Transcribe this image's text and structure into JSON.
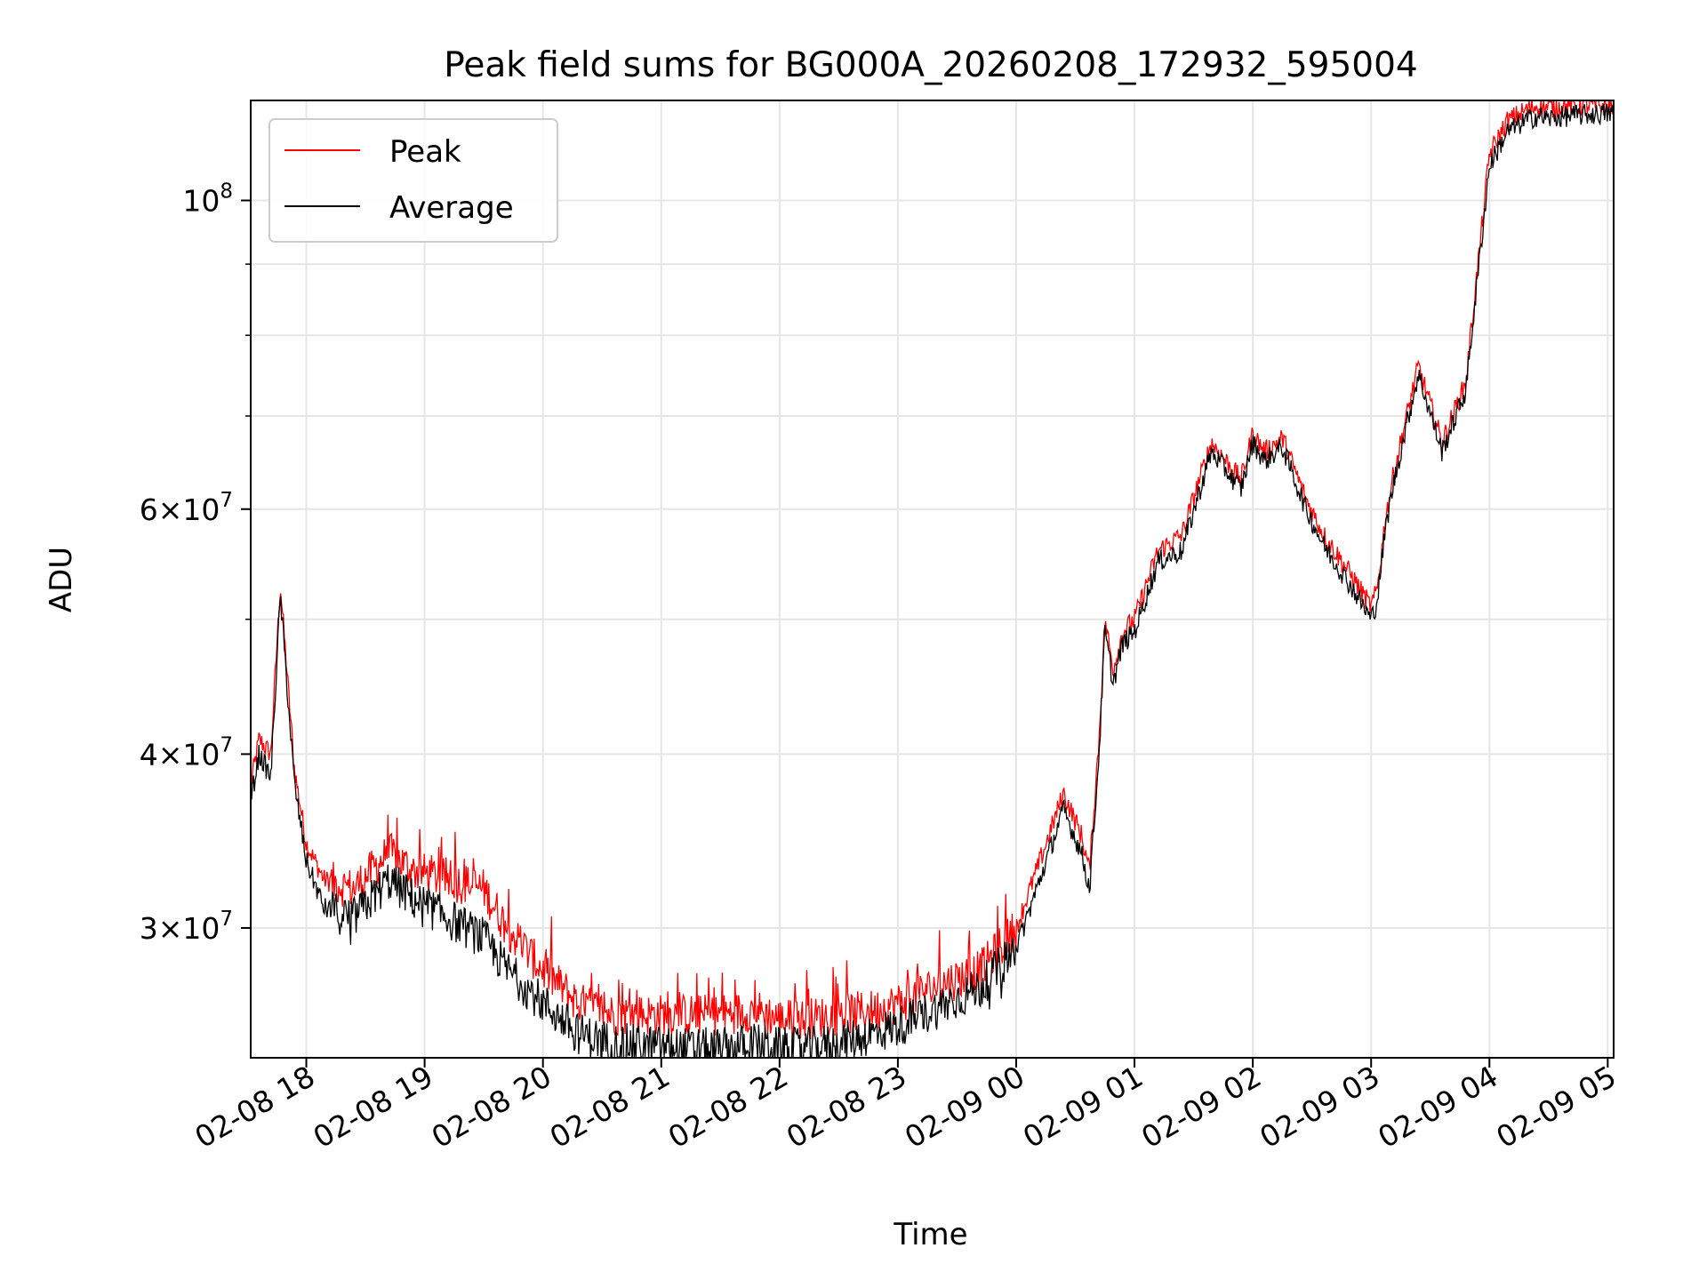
{
  "chart_data": {
    "type": "line",
    "title": "Peak field sums for BG000A_20260208_172932_595004",
    "xlabel": "Time",
    "ylabel": "ADU",
    "yscale": "log",
    "grid": true,
    "legend_position": "top-left",
    "xlim_hours_from_02-08_17": [
      0.53,
      12.05
    ],
    "ylim": [
      24200000,
      118000000
    ],
    "x_ticks": [
      {
        "hour": 1,
        "label": "02-08 18"
      },
      {
        "hour": 2,
        "label": "02-08 19"
      },
      {
        "hour": 3,
        "label": "02-08 20"
      },
      {
        "hour": 4,
        "label": "02-08 21"
      },
      {
        "hour": 5,
        "label": "02-08 22"
      },
      {
        "hour": 6,
        "label": "02-08 23"
      },
      {
        "hour": 7,
        "label": "02-09 00"
      },
      {
        "hour": 8,
        "label": "02-09 01"
      },
      {
        "hour": 9,
        "label": "02-09 02"
      },
      {
        "hour": 10,
        "label": "02-09 03"
      },
      {
        "hour": 11,
        "label": "02-09 04"
      },
      {
        "hour": 12,
        "label": "02-09 05"
      }
    ],
    "y_major_ticks": [
      {
        "value": 30000000,
        "mant": "3",
        "exp": "7"
      },
      {
        "value": 40000000,
        "mant": "4",
        "exp": "7"
      },
      {
        "value": 60000000,
        "mant": "6",
        "exp": "7"
      },
      {
        "value": 100000000,
        "mant": "",
        "exp": "8"
      }
    ],
    "y_minor_ticks": [
      50000000,
      70000000,
      80000000,
      90000000
    ],
    "series": [
      {
        "name": "Peak",
        "color": "#ff0000",
        "x_hours": [
          0.53,
          0.6,
          0.7,
          0.78,
          0.9,
          1.0,
          1.15,
          1.4,
          1.7,
          1.9,
          2.2,
          2.5,
          2.7,
          3.0,
          3.3,
          3.6,
          3.9,
          4.2,
          4.5,
          4.8,
          5.0,
          5.2,
          5.5,
          5.8,
          6.0,
          6.3,
          6.7,
          7.0,
          7.2,
          7.4,
          7.55,
          7.62,
          7.7,
          7.75,
          7.82,
          7.9,
          8.0,
          8.2,
          8.4,
          8.65,
          8.9,
          9.0,
          9.1,
          9.25,
          9.45,
          9.6,
          9.85,
          10.0,
          10.05,
          10.12,
          10.18,
          10.25,
          10.3,
          10.4,
          10.6,
          10.8,
          11.0,
          11.15,
          11.3,
          11.4,
          11.5,
          11.65,
          12.0,
          12.05
        ],
        "values": [
          38000000,
          41000000,
          40000000,
          53000000,
          39000000,
          34500000,
          32500000,
          32000000,
          34000000,
          33000000,
          32500000,
          32000000,
          30000000,
          28000000,
          26500000,
          26000000,
          26000000,
          26000000,
          26000000,
          26200000,
          25800000,
          25800000,
          26000000,
          26200000,
          26500000,
          27200000,
          28000000,
          30000000,
          33500000,
          37500000,
          35000000,
          33000000,
          41000000,
          50000000,
          46000000,
          49000000,
          50000000,
          56000000,
          57500000,
          67000000,
          63000000,
          68000000,
          66000000,
          67500000,
          61000000,
          57500000,
          53500000,
          51000000,
          52500000,
          59000000,
          63000000,
          67000000,
          70000000,
          76000000,
          67000000,
          74000000,
          108000000,
          114000000,
          116000000,
          117000000,
          116500000,
          117000000,
          117000000,
          117000000
        ]
      },
      {
        "name": "Average",
        "color": "#000000",
        "x_hours": [
          0.53,
          0.6,
          0.7,
          0.78,
          0.9,
          1.0,
          1.15,
          1.4,
          1.7,
          1.9,
          2.2,
          2.5,
          2.7,
          3.0,
          3.3,
          3.6,
          3.9,
          4.2,
          4.5,
          4.8,
          5.0,
          5.2,
          5.5,
          5.8,
          6.0,
          6.3,
          6.7,
          7.0,
          7.2,
          7.4,
          7.55,
          7.62,
          7.7,
          7.75,
          7.82,
          7.9,
          8.0,
          8.2,
          8.4,
          8.65,
          8.9,
          9.0,
          9.1,
          9.25,
          9.45,
          9.6,
          9.85,
          10.0,
          10.05,
          10.12,
          10.18,
          10.25,
          10.3,
          10.4,
          10.6,
          10.8,
          11.0,
          11.15,
          11.3,
          11.4,
          11.5,
          11.65,
          12.0,
          12.05
        ],
        "values": [
          37000000,
          40000000,
          38500000,
          52000000,
          38000000,
          33500000,
          31000000,
          30500000,
          32500000,
          31500000,
          30500000,
          29500000,
          28000000,
          26500000,
          25200000,
          24800000,
          24700000,
          24600000,
          24600000,
          24800000,
          24600000,
          24600000,
          24800000,
          25200000,
          25500000,
          26200000,
          27200000,
          29000000,
          32500000,
          36500000,
          34000000,
          32000000,
          40000000,
          49000000,
          45000000,
          48000000,
          49000000,
          55000000,
          56000000,
          66000000,
          62000000,
          67000000,
          65000000,
          66500000,
          60000000,
          56500000,
          52500000,
          50000000,
          51500000,
          58000000,
          62000000,
          66000000,
          69000000,
          75000000,
          66000000,
          73000000,
          106000000,
          112000000,
          114000000,
          115000000,
          114500000,
          115000000,
          115500000,
          115500000
        ]
      }
    ]
  }
}
